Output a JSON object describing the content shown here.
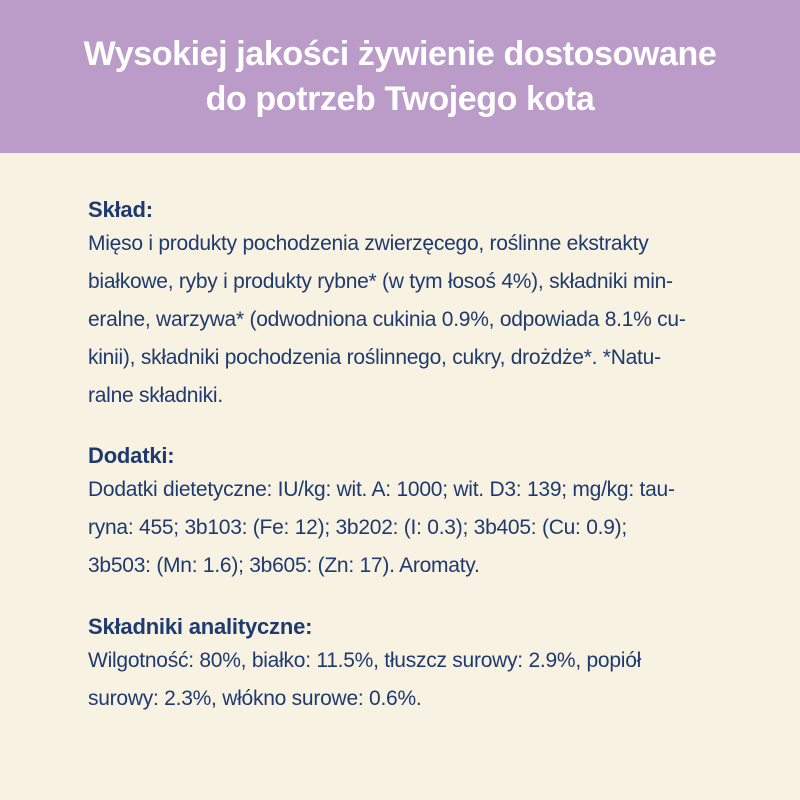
{
  "header": {
    "title_line1": "Wysokiej jakości żywienie dostosowane",
    "title_line2": "do potrzeb Twojego kota"
  },
  "colors": {
    "banner_background": "#bb9cc8",
    "banner_text": "#ffffff",
    "body_background": "#f8f2e3",
    "body_text": "#1e3a6e"
  },
  "sections": [
    {
      "heading": "Skład:",
      "lines": [
        "Mięso i produkty pochodzenia zwierzęcego, roślinne ekstrakty",
        "białkowe, ryby i produkty rybne* (w tym łosoś 4%), składniki min-",
        "eralne, warzywa* (odwodniona cukinia 0.9%, odpowiada 8.1% cu-",
        "kinii), składniki pochodzenia roślinnego, cukry, drożdże*. *Natu-",
        "ralne składniki."
      ]
    },
    {
      "heading": "Dodatki:",
      "lines": [
        "Dodatki dietetyczne: IU/kg: wit. A: 1000; wit. D3: 139; mg/kg: tau-",
        "ryna: 455; 3b103: (Fe: 12); 3b202: (I: 0.3); 3b405: (Cu: 0.9);",
        "3b503: (Mn: 1.6); 3b605: (Zn: 17). Aromaty."
      ]
    },
    {
      "heading": "Składniki analityczne:",
      "lines": [
        "Wilgotność: 80%, białko: 11.5%, tłuszcz surowy: 2.9%, popiół",
        "surowy: 2.3%, włókno surowe: 0.6%."
      ]
    }
  ]
}
